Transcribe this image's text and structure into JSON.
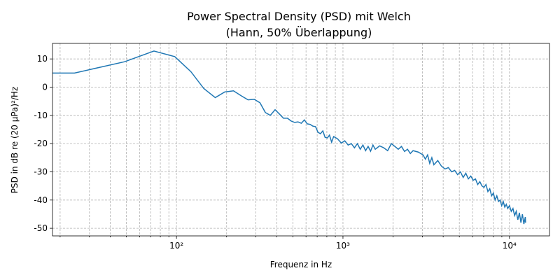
{
  "chart_data": {
    "type": "line",
    "title": [
      "Power Spectral Density (PSD) mit Welch",
      "(Hann, 50% Überlappung)"
    ],
    "xlabel": "Frequenz in Hz",
    "ylabel": "PSD in dB re (20 µPa)²/Hz",
    "xscale": "log",
    "grid": true,
    "xlim": [
      18,
      17400
    ],
    "ylim": [
      -52.7,
      15.5
    ],
    "xticks": [
      {
        "value": 100,
        "label": "10²"
      },
      {
        "value": 1000,
        "label": "10³"
      },
      {
        "value": 10000,
        "label": "10⁴"
      }
    ],
    "xminorticks": [
      20,
      30,
      40,
      50,
      60,
      70,
      80,
      90,
      200,
      300,
      400,
      500,
      600,
      700,
      800,
      900,
      2000,
      3000,
      4000,
      5000,
      6000,
      7000,
      8000,
      9000
    ],
    "yticks": [
      10,
      0,
      -10,
      -20,
      -30,
      -40,
      -50
    ],
    "x": [
      12.2,
      24.4,
      48.8,
      73.2,
      97.7,
      122,
      146,
      171,
      195,
      220,
      244,
      269,
      293,
      317,
      342,
      366,
      391,
      415,
      439,
      464,
      488,
      513,
      537,
      562,
      586,
      610,
      635,
      659,
      684,
      708,
      732,
      757,
      781,
      806,
      830,
      855,
      879,
      928,
      977,
      1025,
      1074,
      1123,
      1172,
      1220,
      1270,
      1318,
      1367,
      1416,
      1465,
      1514,
      1563,
      1660,
      1758,
      1855,
      1953,
      2051,
      2148,
      2246,
      2344,
      2441,
      2539,
      2637,
      2832,
      3027,
      3125,
      3223,
      3320,
      3418,
      3516,
      3711,
      3906,
      4102,
      4297,
      4492,
      4688,
      4883,
      5078,
      5273,
      5469,
      5664,
      5859,
      6055,
      6250,
      6445,
      6641,
      6836,
      7031,
      7227,
      7422,
      7617,
      7813,
      8008,
      8203,
      8398,
      8594,
      8789,
      8984,
      9180,
      9375,
      9570,
      9766,
      10000,
      10254,
      10498,
      10742,
      10986,
      11230,
      11475,
      11719,
      11963,
      12207,
      12451,
      12500
    ],
    "series": [
      {
        "name": "PSD",
        "color": "#1f77b4",
        "values": [
          5,
          5,
          9,
          12.8,
          10.8,
          5.5,
          -0.5,
          -3.7,
          -1.7,
          -1.3,
          -3,
          -4.5,
          -4.3,
          -5.5,
          -9,
          -10,
          -8,
          -9.5,
          -11,
          -11,
          -12,
          -12.5,
          -12.3,
          -12.8,
          -11.6,
          -13,
          -13.2,
          -13.8,
          -14,
          -16,
          -16.5,
          -15.5,
          -17.8,
          -18,
          -17,
          -19.5,
          -17.5,
          -18.3,
          -19.8,
          -19,
          -20.5,
          -20,
          -21.5,
          -20,
          -22,
          -20.5,
          -22.5,
          -21,
          -22.7,
          -20.5,
          -22,
          -20.8,
          -21.5,
          -22.5,
          -20,
          -21,
          -22,
          -21,
          -22.8,
          -22,
          -23.5,
          -22.5,
          -23,
          -24,
          -25.5,
          -24,
          -27,
          -25,
          -27.5,
          -26,
          -28,
          -29,
          -28.5,
          -30,
          -29.5,
          -31,
          -30,
          -32,
          -30.5,
          -32.5,
          -31.5,
          -33,
          -32.5,
          -34.5,
          -33.5,
          -35,
          -35.5,
          -34.5,
          -37,
          -36,
          -38.5,
          -37.5,
          -40,
          -38.5,
          -40.5,
          -40,
          -42,
          -40.5,
          -42.5,
          -41.5,
          -43,
          -42,
          -44,
          -43,
          -45.5,
          -44,
          -47,
          -44.5,
          -48,
          -45,
          -48.5,
          -46,
          -48
        ]
      }
    ]
  }
}
